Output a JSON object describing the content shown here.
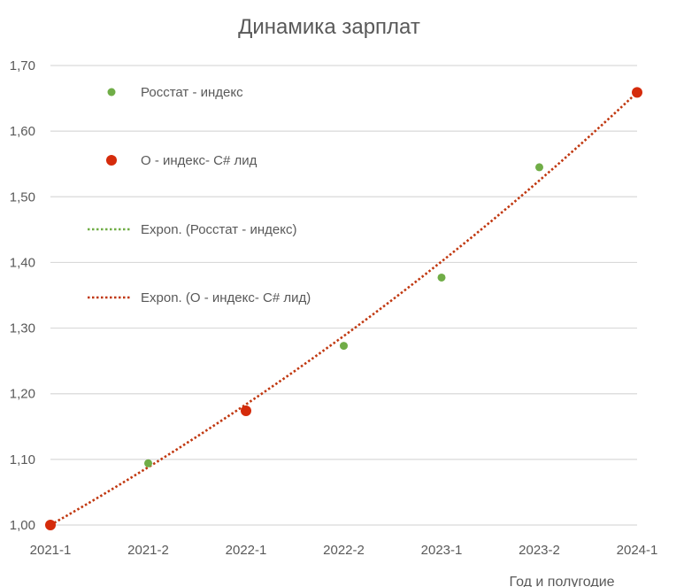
{
  "chart_data": {
    "type": "scatter",
    "title": "Динамика зарплат",
    "xlabel": "Год и полугодие",
    "ylabel": "",
    "categories": [
      "2021-1",
      "2021-2",
      "2022-1",
      "2022-2",
      "2023-1",
      "2023-2",
      "2024-1"
    ],
    "ylim": [
      1.0,
      1.7
    ],
    "yticks": [
      "1,00",
      "1,10",
      "1,20",
      "1,30",
      "1,40",
      "1,50",
      "1,60",
      "1,70"
    ],
    "grid": true,
    "legend_position": "top-left inside plot",
    "series": [
      {
        "name": "Росстат - индекс",
        "color": "#70AD47",
        "marker": "circle-small",
        "points": [
          {
            "x": "2021-1",
            "y": 1.0
          },
          {
            "x": "2021-2",
            "y": 1.094
          },
          {
            "x": "2022-1",
            "y": 1.176
          },
          {
            "x": "2022-2",
            "y": 1.273
          },
          {
            "x": "2023-1",
            "y": 1.377
          },
          {
            "x": "2023-2",
            "y": 1.545
          },
          {
            "x": "2024-1",
            "y": 1.66
          }
        ]
      },
      {
        "name": "О - индекс- C# лид",
        "color": "#D52B0B",
        "marker": "circle-large",
        "points": [
          {
            "x": "2021-1",
            "y": 1.0
          },
          {
            "x": "2022-1",
            "y": 1.174
          },
          {
            "x": "2024-1",
            "y": 1.659
          }
        ]
      }
    ],
    "trendlines": [
      {
        "name": "Expon. (Росстат - индекс)",
        "color": "#70AD47",
        "style": "dotted",
        "visible_in_plot": false
      },
      {
        "name": "Expon. (О - индекс- C# лид)",
        "color": "#C0370F",
        "style": "dotted",
        "visible_in_plot": true,
        "type": "exponential",
        "from": {
          "x": "2021-1",
          "y": 1.0
        },
        "to": {
          "x": "2024-1",
          "y": 1.659
        }
      }
    ]
  }
}
